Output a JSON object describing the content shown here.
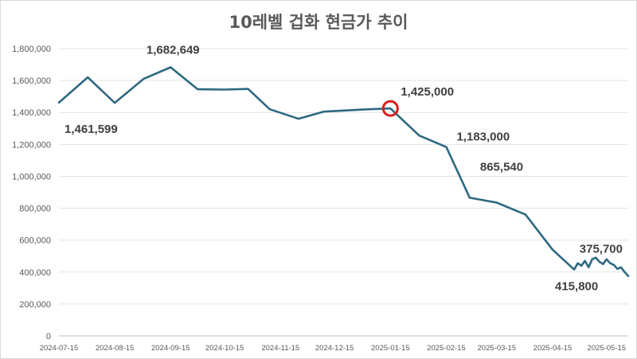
{
  "colors": {
    "line": "#2e6982",
    "grid": "#e3e3e3",
    "highlight": "#d62020",
    "text": "#595959"
  },
  "chart_data": {
    "type": "line",
    "title": "10레벨 겁화 현금가 추이",
    "xlabel": "",
    "ylabel": "",
    "x_ticks": [
      "2024-07-15",
      "2024-08-15",
      "2024-09-15",
      "2024-10-15",
      "2024-11-15",
      "2024-12-15",
      "2025-01-15",
      "2025-02-15",
      "2025-03-15",
      "2025-04-15",
      "2025-05-15"
    ],
    "y_ticks": [
      "0",
      "200,000",
      "400,000",
      "600,000",
      "800,000",
      "1,000,000",
      "1,200,000",
      "1,400,000",
      "1,600,000",
      "1,800,000"
    ],
    "ylim": [
      0,
      1800000
    ],
    "xlim": [
      "2024-07-15",
      "2025-05-27"
    ],
    "grid": true,
    "legend": "none",
    "series": [
      {
        "x": [
          "2024-07-15",
          "2024-07-31",
          "2024-08-15",
          "2024-08-31",
          "2024-09-15",
          "2024-09-30",
          "2024-10-15",
          "2024-10-28",
          "2024-11-09",
          "2024-11-25",
          "2024-12-09",
          "2024-12-31",
          "2025-01-15",
          "2025-01-31",
          "2025-02-15",
          "2025-02-28",
          "2025-03-15",
          "2025-03-31",
          "2025-04-15",
          "2025-04-27",
          "2025-04-29",
          "2025-05-01",
          "2025-05-03",
          "2025-05-05",
          "2025-05-07",
          "2025-05-09",
          "2025-05-11",
          "2025-05-13",
          "2025-05-15",
          "2025-05-17",
          "2025-05-19",
          "2025-05-21",
          "2025-05-23",
          "2025-05-25",
          "2025-05-27"
        ],
        "values": [
          1461599,
          1620000,
          1460000,
          1610000,
          1682649,
          1545000,
          1543000,
          1547000,
          1420000,
          1360000,
          1405000,
          1418000,
          1425000,
          1255000,
          1183000,
          865540,
          835000,
          760000,
          540000,
          415800,
          455000,
          440000,
          470000,
          430000,
          480000,
          490000,
          465000,
          450000,
          480000,
          455000,
          445000,
          420000,
          430000,
          400000,
          375700
        ]
      }
    ],
    "annotations": [
      {
        "text": "1,461,599",
        "x": "2024-07-15",
        "y": 1461599,
        "position": "below"
      },
      {
        "text": "1,682,649",
        "x": "2024-09-15",
        "y": 1682649,
        "position": "above"
      },
      {
        "text": "1,425,000",
        "x": "2025-01-15",
        "y": 1425000,
        "position": "right",
        "highlight": true
      },
      {
        "text": "1,183,000",
        "x": "2025-02-15",
        "y": 1183000,
        "position": "right"
      },
      {
        "text": "865,540",
        "x": "2025-02-28",
        "y": 865540,
        "position": "right"
      },
      {
        "text": "415,800",
        "x": "2025-04-27",
        "y": 415800,
        "position": "below"
      },
      {
        "text": "375,700",
        "x": "2025-05-27",
        "y": 375700,
        "position": "above"
      }
    ]
  }
}
